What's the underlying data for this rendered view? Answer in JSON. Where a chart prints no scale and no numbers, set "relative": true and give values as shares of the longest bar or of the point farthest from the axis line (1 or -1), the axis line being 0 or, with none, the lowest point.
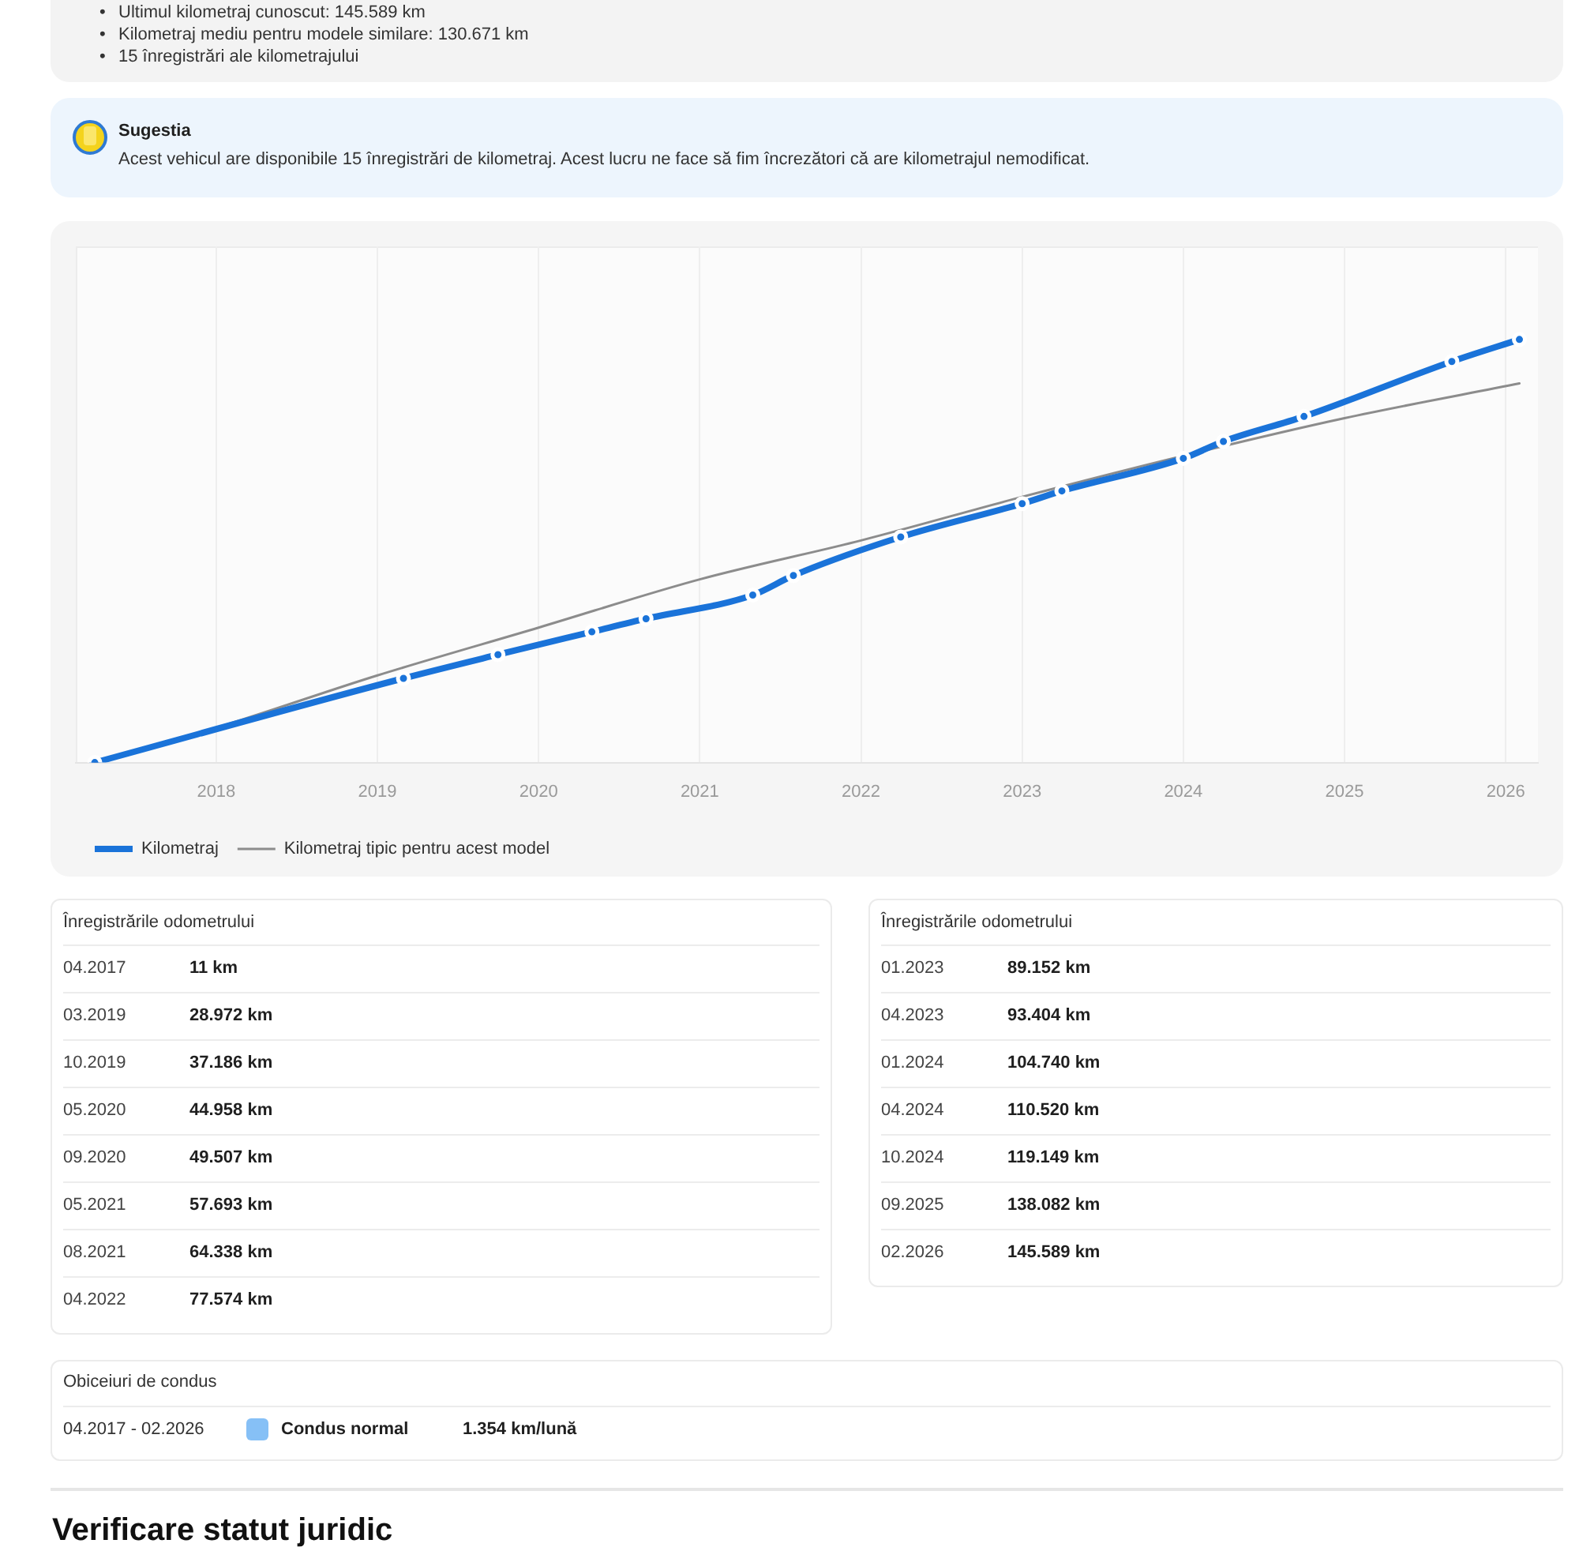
{
  "chart_data": [
    {
      "type": "other",
      "annotations": [
        "•",
        "Ultimul kilometraj cunoscut: 145.589 km",
        "•",
        "Kilometraj mediu pentru modele similare: 130.671 km",
        "•",
        "15 înregistrări ale kilometrajului",
        "Sugestia",
        "Acest vehicul are disponibile 15 înregistrări de kilometraj. Acest lucru ne face să fim încrezători că are kilometrajul nemodificat."
      ]
    },
    {
      "type": "line",
      "relative": true,
      "series": [
        {
          "name": "Kilometraj",
          "color": "#1a73d9",
          "marker": "circle",
          "x": [
            "2017-04",
            "2019-03",
            "2019-10",
            "2020-05",
            "2020-09",
            "2021-05",
            "2021-08",
            "2022-04",
            "2023-01",
            "2023-04",
            "2024-01",
            "2024-04",
            "2024-10",
            "2025-09",
            "2026-02"
          ],
          "values": [
            0,
            0.199,
            0.255,
            0.309,
            0.34,
            0.396,
            0.442,
            0.533,
            0.612,
            0.642,
            0.719,
            0.759,
            0.818,
            0.948,
            1
          ]
        },
        {
          "name": "Kilometraj tipic pentru acest model",
          "color": "#8c8c8c",
          "marker": "none",
          "x": [
            "2017-04",
            "2018",
            "2019",
            "2020",
            "2021",
            "2022",
            "2023",
            "2024",
            "2025",
            "2026-02"
          ],
          "values": [
            0,
            0.082,
            0.206,
            0.319,
            0.433,
            0.525,
            0.628,
            0.725,
            0.814,
            0.896
          ]
        }
      ],
      "xlim": [
        "2017-02-17",
        "2026-03-15"
      ],
      "xticks": [
        "2018",
        "2019",
        "2020",
        "2021",
        "2022",
        "2023",
        "2024",
        "2025",
        "2026"
      ],
      "tick_labels": "x",
      "grid": "x",
      "legend": "bottom left"
    },
    {
      "type": "other",
      "annotations": [
        "Înregistrările odometrului",
        "04.2017",
        "11 km",
        "03.2019",
        "28.972 km",
        "10.2019",
        "37.186 km",
        "05.2020",
        "44.958 km",
        "09.2020",
        "49.507 km",
        "05.2021",
        "57.693 km",
        "08.2021",
        "64.338 km",
        "04.2022",
        "77.574 km",
        "Înregistrările odometrului",
        "01.2023",
        "89.152 km",
        "04.2023",
        "93.404 km",
        "01.2024",
        "104.740 km",
        "04.2024",
        "110.520 km",
        "10.2024",
        "119.149 km",
        "09.2025",
        "138.082 km",
        "02.2026",
        "145.589 km",
        "Obiceiuri de condus",
        "04.2017 - 02.2026",
        "Condus normal",
        "1.354 km/lună",
        "Verificare statut juridic"
      ]
    }
  ]
}
